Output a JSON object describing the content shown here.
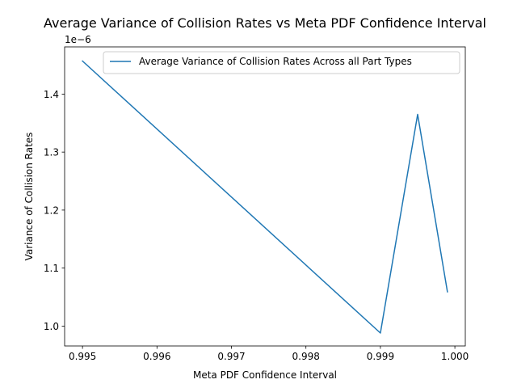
{
  "chart_data": {
    "type": "line",
    "title": "Average Variance of Collision Rates vs Meta PDF Confidence Interval",
    "xlabel": "Meta PDF Confidence Interval",
    "ylabel": "Variance of Collision Rates",
    "y_scale_label": "1e−6",
    "xlim": [
      0.99476,
      1.00014
    ],
    "ylim": [
      0.9657,
      1.4814
    ],
    "x_ticks": [
      0.995,
      0.996,
      0.997,
      0.998,
      0.999,
      1.0
    ],
    "x_tick_labels": [
      "0.995",
      "0.996",
      "0.997",
      "0.998",
      "0.999",
      "1.000"
    ],
    "y_ticks": [
      1.0,
      1.1,
      1.2,
      1.3,
      1.4
    ],
    "y_tick_labels": [
      "1.0",
      "1.1",
      "1.2",
      "1.3",
      "1.4"
    ],
    "grid": false,
    "legend_position": "upper right",
    "series": [
      {
        "name": "Average Variance of Collision Rates Across all Part Types",
        "color": "#1f77b4",
        "x": [
          0.995,
          0.999,
          0.9995,
          0.9999
        ],
        "y": [
          1.457,
          0.988,
          1.365,
          1.059
        ]
      }
    ]
  }
}
